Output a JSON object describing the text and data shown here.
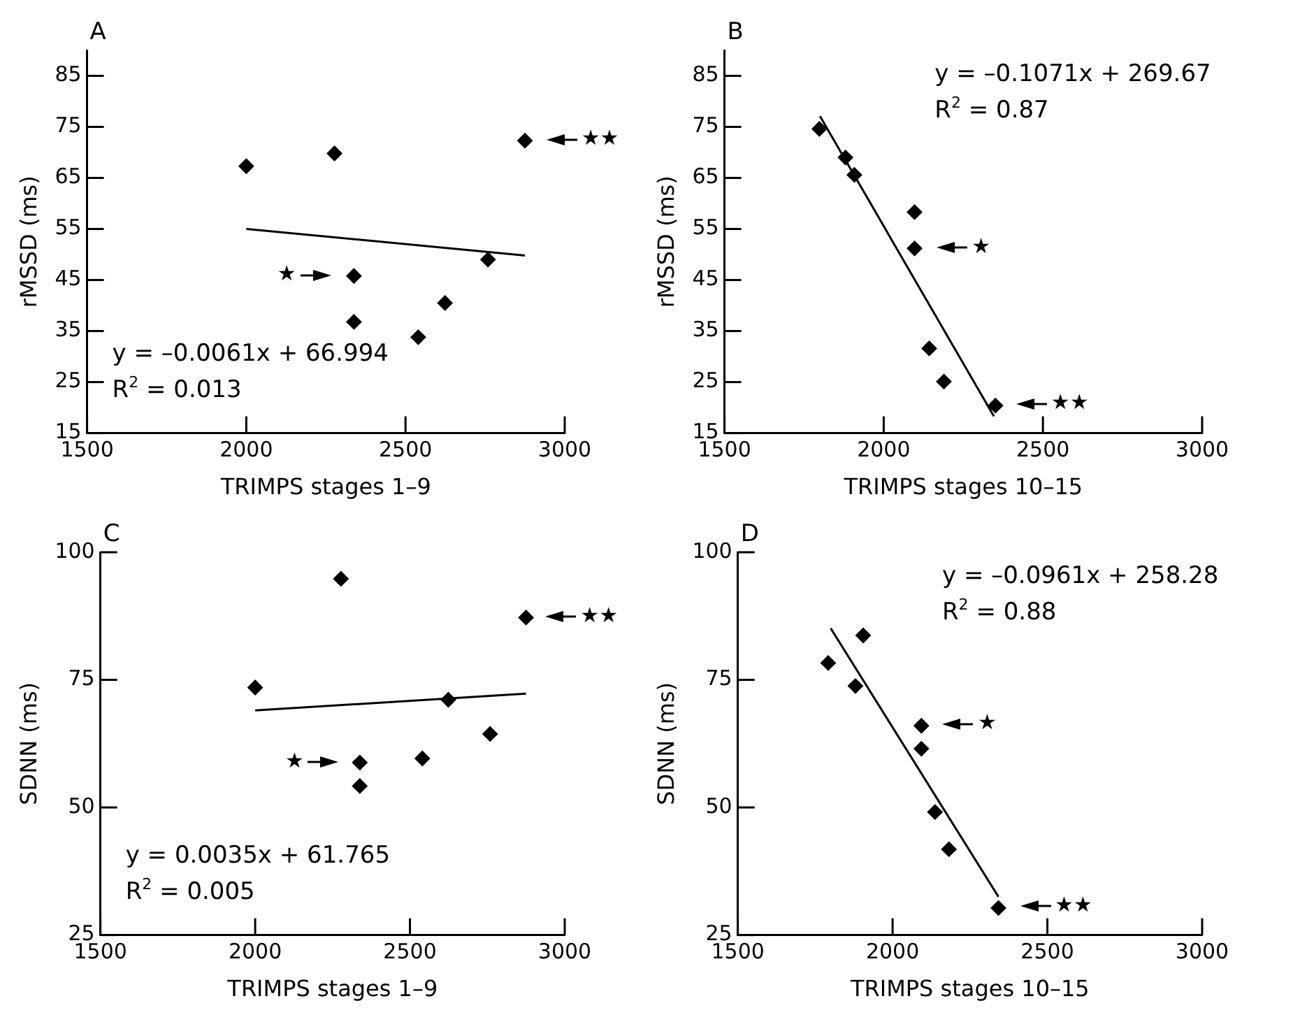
{
  "chart_data": [
    {
      "type": "scatter",
      "title": "A",
      "xlabel": "TRIMPS stages 1–9",
      "ylabel": "rMSSD (ms)",
      "marker": "diamond",
      "grid": false,
      "xlim": [
        1500,
        3000
      ],
      "xticks": [
        1500,
        2000,
        2500,
        3000
      ],
      "ylim": [
        15,
        90
      ],
      "yticks": [
        15,
        25,
        35,
        45,
        55,
        65,
        75,
        85
      ],
      "series": [
        {
          "color": "#000000",
          "x": [
            2000,
            2277,
            2875,
            2338,
            2338,
            2540,
            2624,
            2759
          ],
          "values": [
            67.3,
            69.8,
            72.3,
            45.8,
            36.8,
            33.8,
            40.5,
            49.0
          ]
        },
        {
          "type": "line",
          "color": "#000000",
          "marker": "none",
          "x": [
            2000,
            2875
          ],
          "values": [
            55.0,
            49.8
          ]
        }
      ],
      "annotations": [
        "y = –0.0061x + 66.994",
        "R$^{2}$ = 0.013",
        "★",
        "★★"
      ]
    },
    {
      "type": "scatter",
      "title": "B",
      "xlabel": "TRIMPS stages 10–15",
      "ylabel": "rMSSD (ms)",
      "marker": "diamond",
      "grid": false,
      "xlim": [
        1500,
        3000
      ],
      "xticks": [
        1500,
        2000,
        2500,
        3000
      ],
      "ylim": [
        15,
        90
      ],
      "yticks": [
        15,
        25,
        35,
        45,
        55,
        65,
        75,
        85
      ],
      "series": [
        {
          "color": "#000000",
          "x": [
            1798,
            1880,
            1908,
            2097,
            2097,
            2143,
            2189,
            2351
          ],
          "values": [
            74.6,
            69.0,
            65.6,
            58.3,
            51.2,
            31.6,
            25.1,
            20.4
          ]
        },
        {
          "type": "line",
          "color": "#000000",
          "marker": "none",
          "x": [
            1800,
            2346
          ],
          "values": [
            77.1,
            18.3
          ]
        }
      ],
      "annotations": [
        "y = –0.1071x + 269.67",
        "R$^{2}$ = 0.87",
        "★",
        "★★"
      ]
    },
    {
      "type": "scatter",
      "title": "C",
      "xlabel": "TRIMPS stages 1–9",
      "ylabel": "SDNN (ms)",
      "marker": "diamond",
      "grid": false,
      "xlim": [
        1500,
        3000
      ],
      "xticks": [
        1500,
        2000,
        2500,
        3000
      ],
      "ylim": [
        25,
        100
      ],
      "yticks": [
        25,
        50,
        75,
        100
      ],
      "series": [
        {
          "color": "#000000",
          "x": [
            2000,
            2277,
            2875,
            2338,
            2338,
            2540,
            2624,
            2759
          ],
          "values": [
            73.5,
            94.8,
            87.2,
            58.8,
            54.2,
            59.6,
            71.1,
            64.4
          ]
        },
        {
          "type": "line",
          "color": "#000000",
          "marker": "none",
          "x": [
            2000,
            2875
          ],
          "values": [
            69.0,
            72.3
          ]
        }
      ],
      "annotations": [
        "y = 0.0035x + 61.765",
        "R$^{2}$ = 0.005",
        "★",
        "★★"
      ]
    },
    {
      "type": "scatter",
      "title": "D",
      "xlabel": "TRIMPS stages 10–15",
      "ylabel": "SDNN (ms)",
      "marker": "diamond",
      "grid": false,
      "xlim": [
        1500,
        3000
      ],
      "xticks": [
        1500,
        2000,
        2500,
        3000
      ],
      "ylim": [
        25,
        100
      ],
      "yticks": [
        25,
        50,
        75,
        100
      ],
      "series": [
        {
          "color": "#000000",
          "x": [
            1792,
            1880,
            1905,
            2093,
            2093,
            2137,
            2182,
            2342
          ],
          "values": [
            78.3,
            73.8,
            83.7,
            66.0,
            61.5,
            49.1,
            41.8,
            30.3
          ]
        },
        {
          "type": "line",
          "color": "#000000",
          "marker": "none",
          "x": [
            1800,
            2342
          ],
          "values": [
            85.1,
            32.5
          ]
        }
      ],
      "annotations": [
        "y = –0.0961x + 258.28",
        "R$^{2}$ = 0.88",
        "★",
        "★★"
      ]
    }
  ]
}
